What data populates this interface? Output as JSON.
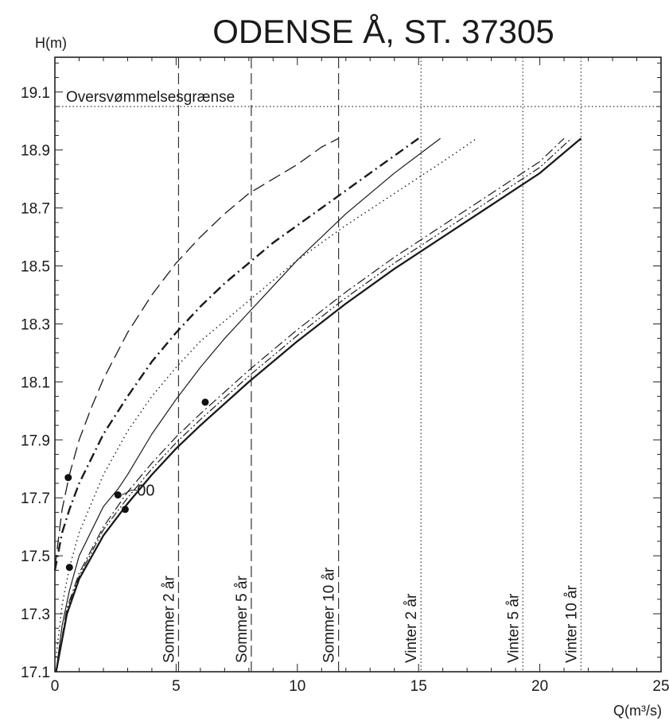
{
  "chart_data": {
    "type": "line",
    "title": "ODENSE Å, ST. 37305",
    "ylabel": "H(m)",
    "xlabel": "Q(m³/s)",
    "xlim": [
      0,
      25
    ],
    "ylim": [
      17.1,
      19.22
    ],
    "x_ticks": [
      0,
      5,
      10,
      15,
      20,
      25
    ],
    "y_ticks": [
      17.1,
      17.3,
      17.5,
      17.7,
      17.9,
      18.1,
      18.3,
      18.5,
      18.7,
      18.9,
      19.1
    ],
    "grid": false,
    "legend": "none",
    "threshold": {
      "label": "Oversvømmelsesgrænse",
      "y": 19.05
    },
    "reference_lines": [
      {
        "label": "Sommer 2 år",
        "x": 5.1,
        "style": "dashed"
      },
      {
        "label": "Sommer 5 år",
        "x": 8.1,
        "style": "dashed"
      },
      {
        "label": "Sommer 10 år",
        "x": 11.7,
        "style": "dashed"
      },
      {
        "label": "Vinter 2 år",
        "x": 15.1,
        "style": "dotted"
      },
      {
        "label": "Vinter 5 år",
        "x": 19.3,
        "style": "dotted"
      },
      {
        "label": "Vinter 10 år",
        "x": 21.7,
        "style": "dotted"
      }
    ],
    "series": [
      {
        "style": "long-dash",
        "x": [
          0,
          0.3,
          0.6,
          1,
          1.5,
          2,
          3,
          4,
          5,
          6,
          7,
          8,
          9,
          10,
          11,
          11.7
        ],
        "y": [
          17.46,
          17.66,
          17.78,
          17.9,
          18.01,
          18.11,
          18.27,
          18.4,
          18.51,
          18.6,
          18.68,
          18.75,
          18.8,
          18.85,
          18.91,
          18.94
        ]
      },
      {
        "style": "dash-dot-heavy",
        "x": [
          0,
          0.3,
          0.6,
          1,
          2,
          3,
          4,
          5,
          6,
          7,
          8,
          9,
          10,
          11,
          12,
          13,
          14,
          15
        ],
        "y": [
          17.45,
          17.58,
          17.66,
          17.75,
          17.92,
          18.05,
          18.17,
          18.27,
          18.36,
          18.44,
          18.51,
          18.58,
          18.64,
          18.7,
          18.76,
          18.82,
          18.88,
          18.94
        ]
      },
      {
        "style": "dotted",
        "x": [
          0.05,
          0.3,
          0.6,
          1,
          2,
          3,
          4,
          5,
          6,
          8,
          10,
          12,
          14,
          16,
          17.4
        ],
        "y": [
          17.15,
          17.33,
          17.46,
          17.58,
          17.78,
          17.93,
          18.05,
          18.15,
          18.24,
          18.38,
          18.52,
          18.64,
          18.75,
          18.86,
          18.94
        ]
      },
      {
        "style": "solid-thin",
        "x": [
          0.05,
          0.3,
          0.6,
          1,
          2,
          2.6,
          3,
          4,
          5,
          6,
          7,
          8,
          10,
          12,
          14,
          15.9
        ],
        "y": [
          17.1,
          17.26,
          17.38,
          17.5,
          17.67,
          17.73,
          17.78,
          17.92,
          18.04,
          18.15,
          18.25,
          18.34,
          18.52,
          18.68,
          18.82,
          18.94
        ]
      },
      {
        "style": "dash-dot",
        "x": [
          0.05,
          0.5,
          1,
          2,
          3,
          4,
          5,
          6,
          8,
          10,
          12,
          14,
          16,
          18,
          20,
          21
        ],
        "y": [
          17.1,
          17.32,
          17.44,
          17.6,
          17.72,
          17.82,
          17.91,
          17.99,
          18.14,
          18.28,
          18.41,
          18.53,
          18.64,
          18.75,
          18.86,
          18.94
        ]
      },
      {
        "style": "dash-dot-dot",
        "x": [
          0.05,
          0.5,
          1,
          2,
          3,
          4,
          5,
          6,
          8,
          10,
          12,
          14,
          16,
          18,
          20,
          21.3
        ],
        "y": [
          17.1,
          17.31,
          17.43,
          17.59,
          17.7,
          17.8,
          17.89,
          17.97,
          18.12,
          18.26,
          18.39,
          18.51,
          18.62,
          18.73,
          18.84,
          18.94
        ]
      },
      {
        "style": "solid-heavy",
        "x": [
          0.05,
          0.5,
          1,
          2,
          3,
          4,
          5,
          6,
          8,
          10,
          12,
          14,
          16,
          18,
          20,
          21.7
        ],
        "y": [
          17.1,
          17.3,
          17.42,
          17.57,
          17.68,
          17.78,
          17.87,
          17.95,
          18.1,
          18.24,
          18.37,
          18.49,
          18.6,
          18.71,
          18.82,
          18.94
        ]
      }
    ],
    "points": [
      {
        "x": 0.55,
        "y": 17.77
      },
      {
        "x": 0.6,
        "y": 17.46
      },
      {
        "x": 2.6,
        "y": 17.71
      },
      {
        "x": 2.9,
        "y": 17.66
      },
      {
        "x": 6.2,
        "y": 18.03
      }
    ],
    "annotation": {
      "text": "00",
      "x": 2.6,
      "y": 17.71
    }
  }
}
